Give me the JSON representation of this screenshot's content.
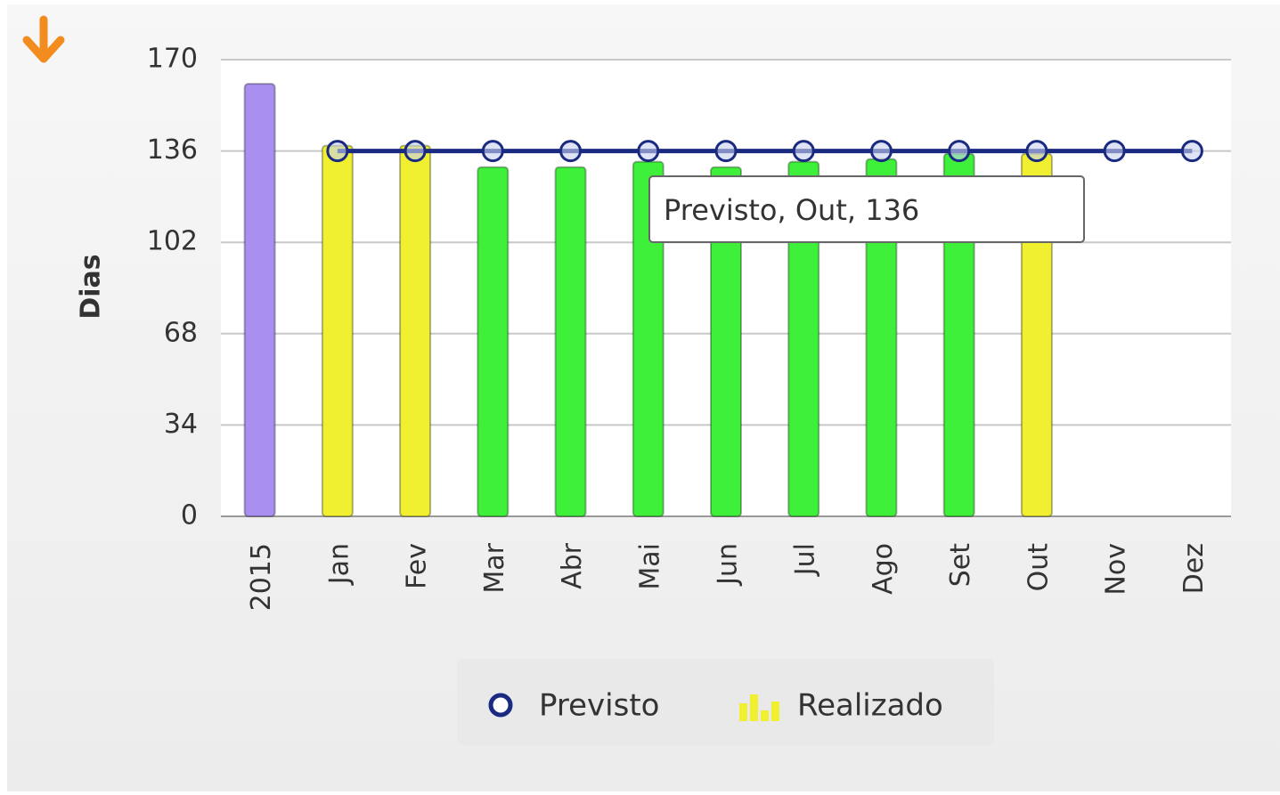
{
  "chart_data": {
    "type": "bar",
    "categories": [
      "2015",
      "Jan",
      "Fev",
      "Mar",
      "Abr",
      "Mai",
      "Jun",
      "Jul",
      "Ago",
      "Set",
      "Out",
      "Nov",
      "Dez"
    ],
    "series": [
      {
        "name": "Previsto",
        "type": "line",
        "color": "#1a2a80",
        "values": [
          null,
          136,
          136,
          136,
          136,
          136,
          136,
          136,
          136,
          136,
          136,
          136,
          136
        ]
      },
      {
        "name": "Realizado",
        "type": "bar",
        "color": "#f0f030",
        "colors": [
          "#a98ff0",
          "#f0f030",
          "#f0f030",
          "#3ef03a",
          "#3ef03a",
          "#3ef03a",
          "#3ef03a",
          "#3ef03a",
          "#3ef03a",
          "#3ef03a",
          "#f0f030",
          "#f0f030",
          "#f0f030"
        ],
        "values": [
          161,
          138,
          138,
          130,
          130,
          132,
          130,
          132,
          133,
          135,
          135,
          null,
          null
        ]
      }
    ],
    "y_label": "Dias",
    "ylim": [
      0,
      170
    ],
    "yticks": [
      0,
      34,
      68,
      102,
      136,
      170
    ],
    "grid": true,
    "legend": "bottom",
    "tooltip": "Previsto, Out, 136"
  }
}
